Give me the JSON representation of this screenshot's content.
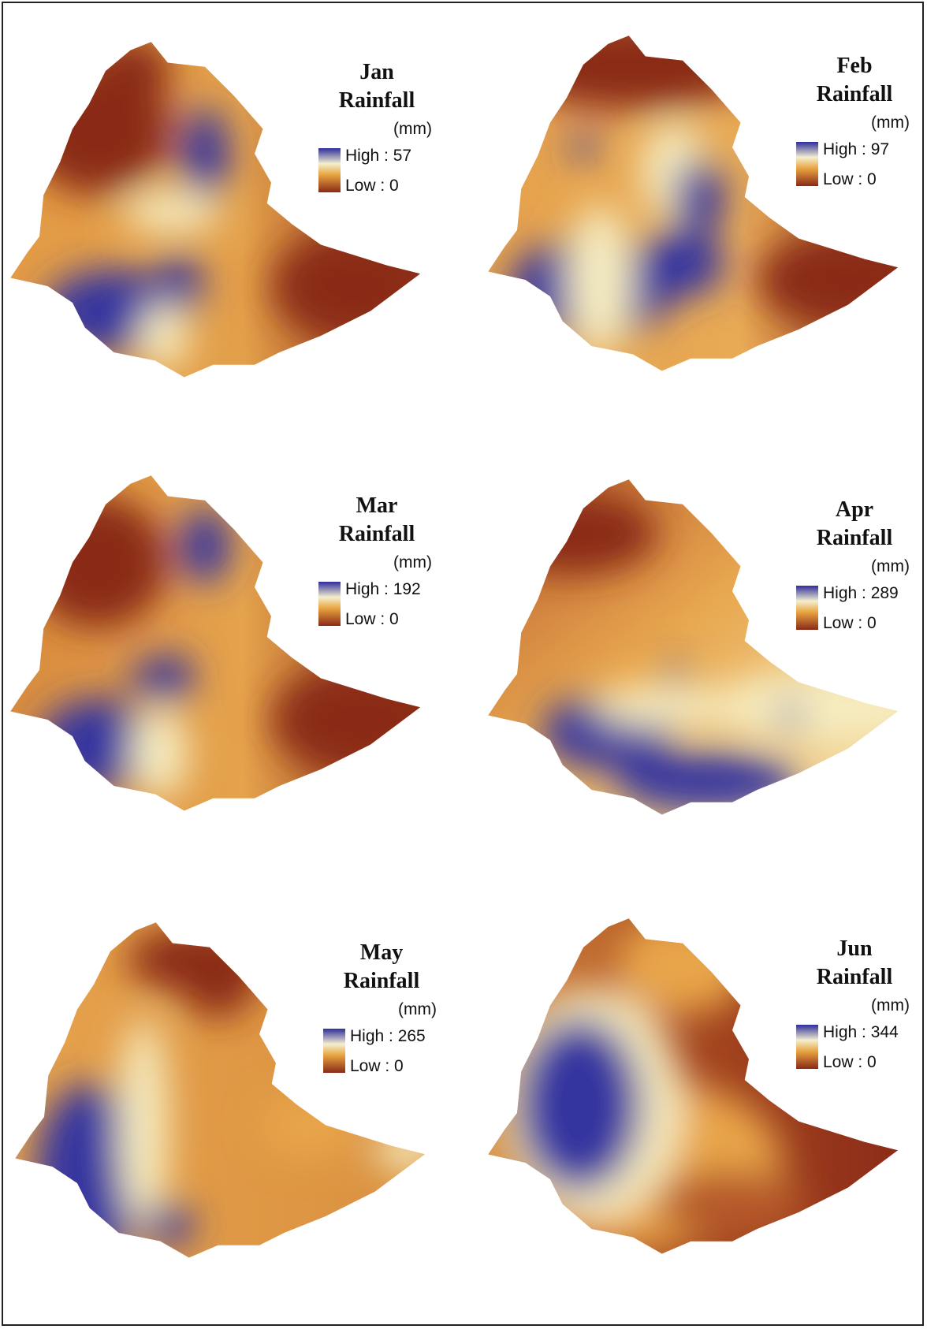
{
  "panels": [
    {
      "month": "Jan",
      "title": "Rainfall",
      "unit": "(mm)",
      "high": "High : 57",
      "low": "Low : 0"
    },
    {
      "month": "Feb",
      "title": "Rainfall",
      "unit": "(mm)",
      "high": "High : 97",
      "low": "Low : 0"
    },
    {
      "month": "Mar",
      "title": "Rainfall",
      "unit": "(mm)",
      "high": "High : 192",
      "low": "Low : 0"
    },
    {
      "month": "Apr",
      "title": "Rainfall",
      "unit": "(mm)",
      "high": "High : 289",
      "low": "Low : 0"
    },
    {
      "month": "May",
      "title": "Rainfall",
      "unit": "(mm)",
      "high": "High : 265",
      "low": "Low : 0"
    },
    {
      "month": "Jun",
      "title": "Rainfall",
      "unit": "(mm)",
      "high": "High : 344",
      "low": "Low : 0"
    }
  ]
}
